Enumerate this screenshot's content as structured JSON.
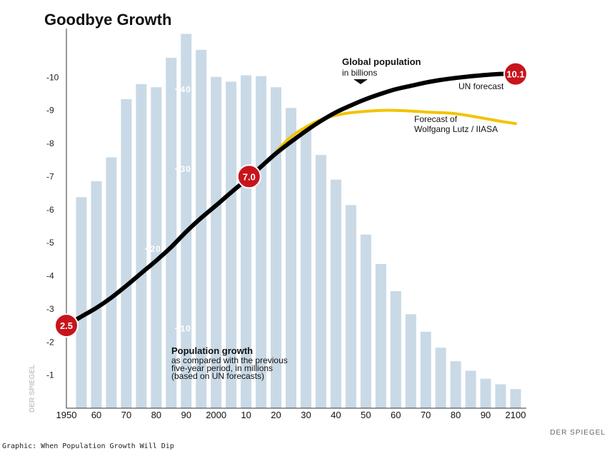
{
  "chart_data": {
    "type": "bar",
    "title": "Goodbye Growth",
    "x_ticks": [
      "1950",
      "60",
      "70",
      "80",
      "90",
      "2000",
      "10",
      "20",
      "30",
      "40",
      "50",
      "60",
      "70",
      "80",
      "90",
      "2100"
    ],
    "bars": {
      "name": "Population growth",
      "label_lines": [
        "Population growth",
        "as compared with the previous",
        "five-year period, in millions",
        "(based on UN forecasts)"
      ],
      "categories": [
        1955,
        1960,
        1965,
        1970,
        1975,
        1980,
        1985,
        1990,
        1995,
        2000,
        2005,
        2010,
        2015,
        2020,
        2025,
        2030,
        2035,
        2040,
        2045,
        2050,
        2055,
        2060,
        2065,
        2070,
        2075,
        2080,
        2085,
        2090,
        2095,
        2100
      ],
      "values": [
        265,
        285,
        315,
        388,
        407,
        403,
        440,
        470,
        450,
        416,
        410,
        418,
        417,
        403,
        377,
        349,
        318,
        287,
        255,
        218,
        181,
        147,
        118,
        96,
        76,
        59,
        47,
        37,
        30,
        24
      ],
      "axis_ticks": [
        "+100",
        "+200",
        "+300",
        "+400"
      ],
      "axis_tick_values": [
        100,
        200,
        300,
        400
      ],
      "ylim": [
        0,
        500
      ]
    },
    "lines": [
      {
        "name": "Global population in billions",
        "label_lines": [
          "Global population",
          "in billions"
        ],
        "color": "#000000",
        "x": [
          1950,
          1955,
          1960,
          1965,
          1970,
          1975,
          1980,
          1985,
          1990,
          1995,
          2000,
          2005,
          2010,
          2015,
          2020,
          2025,
          2030,
          2035,
          2040,
          2045,
          2050,
          2055,
          2060,
          2065,
          2070,
          2075,
          2080,
          2085,
          2090,
          2095,
          2100
        ],
        "y": [
          2.5,
          2.77,
          3.03,
          3.34,
          3.7,
          4.08,
          4.46,
          4.87,
          5.33,
          5.75,
          6.13,
          6.52,
          6.9,
          7.3,
          7.7,
          8.05,
          8.38,
          8.68,
          8.94,
          9.15,
          9.34,
          9.5,
          9.64,
          9.74,
          9.84,
          9.92,
          9.98,
          10.03,
          10.07,
          10.1,
          10.1
        ]
      },
      {
        "name": "Forecast of Wolfgang Lutz / IIASA",
        "label_lines": [
          "Forecast of",
          "Wolfgang Lutz / IIASA"
        ],
        "color": "#f2c300",
        "x": [
          2020,
          2025,
          2030,
          2035,
          2040,
          2045,
          2050,
          2055,
          2060,
          2065,
          2070,
          2075,
          2080,
          2085,
          2090,
          2095,
          2100
        ],
        "y": [
          7.75,
          8.2,
          8.5,
          8.72,
          8.85,
          8.93,
          8.97,
          9.0,
          9.0,
          8.98,
          8.95,
          8.93,
          8.9,
          8.83,
          8.75,
          8.67,
          8.6
        ]
      }
    ],
    "y_ticks": [
      1,
      2,
      3,
      4,
      5,
      6,
      7,
      8,
      9,
      10
    ],
    "ylim": [
      0,
      11.3
    ],
    "ylabel": "",
    "xlabel": "",
    "annotations": [
      {
        "value": "2.5",
        "x": 1950,
        "y": 2.5
      },
      {
        "value": "7.0",
        "x": 2011,
        "y": 7.0
      },
      {
        "value": "10.1",
        "x": 2100,
        "y": 10.1
      },
      {
        "text": "UN forecast"
      }
    ],
    "colors": {
      "bars": "#c9d9e6",
      "background": "#ffffff",
      "badge": "#c8141c"
    }
  },
  "watermark": "DER SPIEGEL",
  "credit": "DER SPIEGEL",
  "caption": "Graphic: When Population Growth Will Dip"
}
